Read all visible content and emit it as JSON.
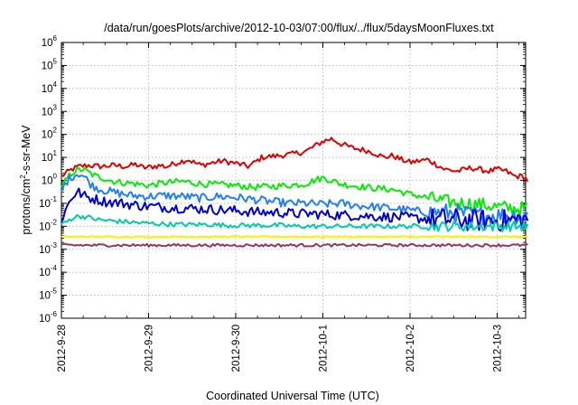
{
  "chart_data": {
    "type": "line",
    "title": "/data/run/goesPlots/archive/2012-10-03/07:00/flux/../flux/5daysMoonFluxes.txt",
    "xlabel": "Coordinated Universal Time (UTC)",
    "ylabel": "protons/cm²-s-sr-MeV",
    "ylabel_parts": {
      "pre": "protons/cm",
      "sup": "2",
      "post": "-s-sr-MeV"
    },
    "yscale": "log",
    "ylim_exp": [
      -6,
      6
    ],
    "y_ticks": [
      {
        "base": "10",
        "exp": "6"
      },
      {
        "base": "10",
        "exp": "5"
      },
      {
        "base": "10",
        "exp": "4"
      },
      {
        "base": "10",
        "exp": "3"
      },
      {
        "base": "10",
        "exp": "2"
      },
      {
        "base": "10",
        "exp": "1"
      },
      {
        "base": "10",
        "exp": "0"
      },
      {
        "base": "10",
        "exp": "-1"
      },
      {
        "base": "10",
        "exp": "-2"
      },
      {
        "base": "10",
        "exp": "-3"
      },
      {
        "base": "10",
        "exp": "-4"
      },
      {
        "base": "10",
        "exp": "-5"
      },
      {
        "base": "10",
        "exp": "-6"
      }
    ],
    "x_tick_labels": [
      "2012-9-28",
      "2012-9-29",
      "2012-9-30",
      "2012-10-1",
      "2012-10-2",
      "2012-10-3"
    ],
    "x_days_range": [
      0,
      5.35
    ],
    "grid": true,
    "series": [
      {
        "color": "#e00000",
        "x": [
          0,
          0.05,
          0.12,
          0.2,
          0.3,
          0.45,
          0.6,
          0.75,
          0.85,
          0.95,
          1.05,
          1.15,
          1.2,
          1.3,
          1.45,
          1.6,
          1.75,
          1.85,
          1.95,
          2.05,
          2.15,
          2.3,
          2.5,
          2.65,
          2.8,
          2.9,
          3.0,
          3.1,
          3.2,
          3.35,
          3.5,
          3.6,
          3.7,
          3.8,
          3.9,
          4.0,
          4.1,
          4.2,
          4.3,
          4.4,
          4.55,
          4.7,
          4.8,
          4.9,
          5.0,
          5.1,
          5.2,
          5.3,
          5.35
        ],
        "y": [
          1.5,
          2.0,
          3.0,
          4.0,
          4.5,
          4.0,
          4.5,
          4.0,
          5.0,
          3.5,
          4.0,
          4.5,
          3.8,
          5.5,
          8.0,
          4.5,
          6.0,
          7.0,
          6.0,
          5.0,
          4.0,
          10.0,
          12.0,
          14.0,
          18.0,
          30.0,
          50.0,
          65.0,
          40.0,
          25.0,
          20.0,
          15.0,
          10.0,
          12.0,
          8.0,
          6.0,
          7.0,
          8.0,
          5.0,
          3.0,
          2.5,
          3.5,
          3.0,
          2.5,
          3.0,
          2.5,
          1.5,
          1.5,
          1.0
        ]
      },
      {
        "color": "#00ee00",
        "x": [
          0,
          0.05,
          0.1,
          0.15,
          0.2,
          0.25,
          0.3,
          0.35,
          0.4,
          0.5,
          0.6,
          0.7,
          0.8,
          1.0,
          1.2,
          1.4,
          1.6,
          1.8,
          2.0,
          2.2,
          2.4,
          2.6,
          2.8,
          2.9,
          3.0,
          3.1,
          3.2,
          3.4,
          3.6,
          3.8,
          4.0,
          4.2,
          4.4,
          4.6,
          4.8,
          5.0,
          5.2,
          5.35
        ],
        "y": [
          0.4,
          1.0,
          1.8,
          2.5,
          2.8,
          3.0,
          2.4,
          1.8,
          1.5,
          1.2,
          0.9,
          0.8,
          0.75,
          0.6,
          0.8,
          0.9,
          0.7,
          0.65,
          0.6,
          0.5,
          0.55,
          0.6,
          0.7,
          1.0,
          1.3,
          1.0,
          0.7,
          0.55,
          0.45,
          0.4,
          0.25,
          0.18,
          0.12,
          0.1,
          0.09,
          0.07,
          0.06,
          0.06
        ]
      },
      {
        "color": "#1e7fff",
        "x": [
          0,
          0.05,
          0.1,
          0.15,
          0.2,
          0.25,
          0.3,
          0.35,
          0.45,
          0.6,
          0.8,
          1.0,
          1.2,
          1.4,
          1.6,
          1.8,
          2.0,
          2.2,
          2.4,
          2.6,
          2.8,
          3.0,
          3.2,
          3.4,
          3.6,
          3.8,
          4.0,
          4.2,
          4.4,
          4.6,
          4.8,
          5.0,
          5.2,
          5.35
        ],
        "y": [
          0.3,
          0.8,
          1.3,
          1.7,
          2.0,
          1.6,
          1.0,
          0.6,
          0.4,
          0.3,
          0.22,
          0.2,
          0.22,
          0.2,
          0.17,
          0.2,
          0.18,
          0.15,
          0.12,
          0.1,
          0.1,
          0.09,
          0.1,
          0.08,
          0.07,
          0.06,
          0.05,
          0.04,
          0.04,
          0.035,
          0.03,
          0.03,
          0.03,
          0.03
        ]
      },
      {
        "color": "#0000dd",
        "x": [
          0,
          0.05,
          0.1,
          0.15,
          0.2,
          0.25,
          0.3,
          0.4,
          0.5,
          0.7,
          0.9,
          1.1,
          1.3,
          1.5,
          1.7,
          1.9,
          2.1,
          2.3,
          2.5,
          2.7,
          2.9,
          3.1,
          3.3,
          3.5,
          3.7,
          3.9,
          4.1,
          4.3,
          4.5,
          4.7,
          4.9,
          5.1,
          5.35
        ],
        "y": [
          0.02,
          0.05,
          0.15,
          0.25,
          0.3,
          0.22,
          0.18,
          0.15,
          0.12,
          0.1,
          0.08,
          0.07,
          0.065,
          0.06,
          0.055,
          0.05,
          0.045,
          0.04,
          0.04,
          0.035,
          0.035,
          0.032,
          0.03,
          0.028,
          0.026,
          0.025,
          0.022,
          0.02,
          0.02,
          0.018,
          0.018,
          0.018,
          0.02
        ]
      },
      {
        "color": "#00ccaa",
        "x": [
          0,
          0.05,
          0.1,
          0.15,
          0.2,
          0.3,
          0.4,
          0.5,
          0.7,
          0.9,
          1.1,
          1.3,
          1.5,
          1.7,
          1.9,
          2.1,
          2.3,
          2.5,
          2.7,
          2.9,
          3.1,
          3.3,
          3.5,
          3.7,
          3.9,
          4.1,
          4.3,
          4.5,
          4.7,
          4.9,
          5.1,
          5.35
        ],
        "y": [
          0.012,
          0.015,
          0.02,
          0.025,
          0.028,
          0.025,
          0.02,
          0.018,
          0.016,
          0.014,
          0.013,
          0.012,
          0.012,
          0.012,
          0.011,
          0.011,
          0.011,
          0.011,
          0.01,
          0.01,
          0.01,
          0.01,
          0.01,
          0.01,
          0.01,
          0.01,
          0.01,
          0.01,
          0.01,
          0.01,
          0.01,
          0.01
        ]
      },
      {
        "color": "#ffee00",
        "x": [
          0,
          1.0,
          2.0,
          3.0,
          4.0,
          5.0,
          5.35
        ],
        "y": [
          0.0035,
          0.0035,
          0.0035,
          0.0035,
          0.0035,
          0.0035,
          0.0035
        ]
      },
      {
        "color": "#993366",
        "x": [
          0,
          1.0,
          2.0,
          3.0,
          4.0,
          5.0,
          5.35
        ],
        "y": [
          0.0015,
          0.0015,
          0.0015,
          0.0015,
          0.0015,
          0.0015,
          0.0015
        ]
      }
    ]
  }
}
